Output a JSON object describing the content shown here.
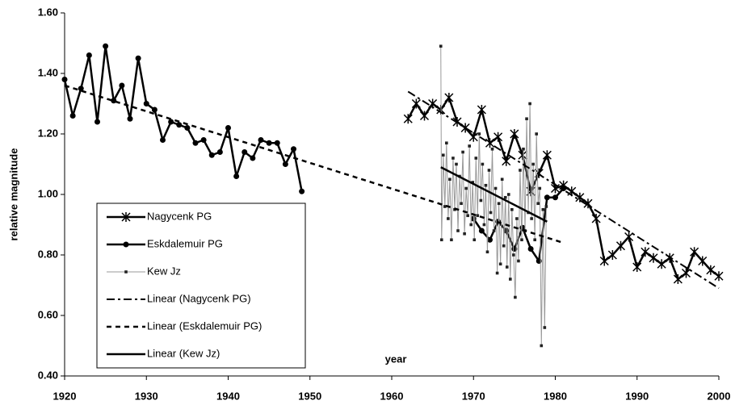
{
  "chart_data": {
    "type": "line",
    "x_label": "year",
    "y_label": "relative magnitude",
    "xlim": [
      1920,
      2000
    ],
    "xticks": [
      1920,
      1930,
      1940,
      1950,
      1960,
      1970,
      1980,
      1990,
      2000
    ],
    "ylim": [
      0.4,
      1.6
    ],
    "yticks": [
      {
        "value": 0.4,
        "label": "0.40"
      },
      {
        "value": 0.6,
        "label": "0.60"
      },
      {
        "value": 0.8,
        "label": "0.80"
      },
      {
        "value": 1.0,
        "label": "1.00"
      },
      {
        "value": 1.2,
        "label": "1.20"
      },
      {
        "value": 1.4,
        "label": "1.40"
      },
      {
        "value": 1.6,
        "label": "1.60"
      }
    ],
    "legend": "lower left",
    "series": [
      {
        "name": "Nagycenk PG",
        "color": "#000000",
        "width": 2.5,
        "marker": "star",
        "x": [
          1962,
          1963,
          1964,
          1965,
          1966,
          1967,
          1968,
          1969,
          1970,
          1971,
          1972,
          1973,
          1974,
          1975,
          1976,
          1977,
          1978,
          1979,
          1980,
          1981,
          1982,
          1983,
          1984,
          1985,
          1986,
          1987,
          1988,
          1989,
          1990,
          1991,
          1992,
          1993,
          1994,
          1995,
          1996,
          1997,
          1998,
          1999,
          2000
        ],
        "values": [
          1.25,
          1.3,
          1.26,
          1.3,
          1.28,
          1.32,
          1.24,
          1.22,
          1.19,
          1.28,
          1.17,
          1.19,
          1.11,
          1.2,
          1.13,
          1.01,
          1.07,
          1.13,
          1.02,
          1.03,
          1.01,
          0.99,
          0.97,
          0.92,
          0.78,
          0.8,
          0.83,
          0.86,
          0.76,
          0.81,
          0.79,
          0.77,
          0.79,
          0.72,
          0.74,
          0.81,
          0.78,
          0.75,
          0.73
        ]
      },
      {
        "name": "Eskdalemuir PG",
        "color": "#000000",
        "width": 2.5,
        "marker": "circle",
        "x": [
          1920,
          1921,
          1922,
          1923,
          1924,
          1925,
          1926,
          1927,
          1928,
          1929,
          1930,
          1931,
          1932,
          1933,
          1934,
          1935,
          1936,
          1937,
          1938,
          1939,
          1940,
          1941,
          1942,
          1943,
          1944,
          1945,
          1946,
          1947,
          1948,
          1949,
          1950,
          1970,
          1971,
          1972,
          1973,
          1974,
          1975,
          1976,
          1977,
          1978,
          1979,
          1980,
          1981
        ],
        "values": [
          1.38,
          1.26,
          1.35,
          1.46,
          1.24,
          1.49,
          1.31,
          1.36,
          1.25,
          1.45,
          1.3,
          1.28,
          1.18,
          1.24,
          1.23,
          1.22,
          1.17,
          1.18,
          1.13,
          1.14,
          1.22,
          1.06,
          1.14,
          1.12,
          1.18,
          1.17,
          1.17,
          1.1,
          1.15,
          1.01,
          null,
          0.92,
          0.88,
          0.85,
          0.91,
          0.88,
          0.82,
          0.89,
          0.82,
          0.78,
          0.99,
          0.99,
          1.02
        ]
      },
      {
        "name": "Kew Jz",
        "color": "#999999",
        "width": 1,
        "marker": "square",
        "x": [
          1966.0,
          1966.1,
          1966.3,
          1966.5,
          1966.7,
          1966.9,
          1967.1,
          1967.3,
          1967.5,
          1967.7,
          1967.9,
          1968.1,
          1968.3,
          1968.5,
          1968.7,
          1968.9,
          1969.1,
          1969.3,
          1969.5,
          1969.7,
          1969.9,
          1970.1,
          1970.3,
          1970.5,
          1970.7,
          1970.9,
          1971.1,
          1971.3,
          1971.5,
          1971.7,
          1971.9,
          1972.1,
          1972.3,
          1972.5,
          1972.7,
          1972.9,
          1973.1,
          1973.3,
          1973.5,
          1973.7,
          1973.9,
          1974.1,
          1974.3,
          1974.5,
          1974.7,
          1974.9,
          1975.1,
          1975.3,
          1975.5,
          1975.7,
          1975.9,
          1976.1,
          1976.3,
          1976.5,
          1976.7,
          1976.9,
          1977.1,
          1977.3,
          1977.5,
          1977.7,
          1977.9,
          1978.1,
          1978.3,
          1978.5,
          1978.7,
          1978.9
        ],
        "values": [
          1.49,
          0.85,
          1.13,
          0.96,
          1.17,
          0.92,
          1.05,
          0.85,
          1.12,
          0.95,
          1.1,
          0.88,
          1.06,
          0.97,
          1.14,
          0.87,
          1.02,
          0.93,
          1.16,
          0.9,
          1.04,
          0.85,
          1.12,
          0.93,
          1.2,
          0.98,
          1.1,
          0.9,
          1.03,
          0.81,
          1.08,
          0.94,
          1.15,
          0.88,
          1.02,
          0.74,
          0.97,
          0.77,
          1.05,
          0.83,
          0.99,
          0.76,
          1.0,
          0.72,
          0.95,
          0.8,
          0.66,
          0.92,
          0.78,
          1.08,
          0.85,
          1.15,
          0.88,
          1.25,
          0.94,
          1.3,
          0.92,
          1.1,
          0.85,
          1.2,
          0.97,
          1.02,
          0.5,
          0.95,
          0.56,
          0.96
        ]
      },
      {
        "name": "Linear (Nagycenk PG)",
        "color": "#000000",
        "width": 2,
        "dash": "10,4,3,4",
        "x": [
          1962,
          2000
        ],
        "values": [
          1.34,
          0.69
        ]
      },
      {
        "name": "Linear (Eskdalemuir PG)",
        "color": "#000000",
        "width": 2.5,
        "dash": "6,5",
        "x": [
          1920,
          1981
        ],
        "values": [
          1.36,
          0.84
        ]
      },
      {
        "name": "Linear (Kew Jz)",
        "color": "#000000",
        "width": 2.5,
        "x": [
          1966,
          1979
        ],
        "values": [
          1.09,
          0.91
        ]
      }
    ]
  }
}
